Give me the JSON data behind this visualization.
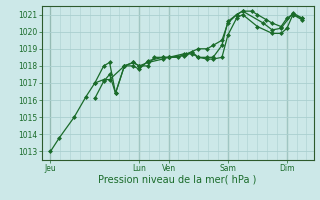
{
  "title": "",
  "xlabel": "Pression niveau de la mer( hPa )",
  "ylabel": "",
  "bg_color": "#cce8e8",
  "grid_color": "#aacfcf",
  "line_color": "#1a6b2a",
  "spine_color": "#2d5a2d",
  "ylim": [
    1012.5,
    1021.5
  ],
  "yticks": [
    1013,
    1014,
    1015,
    1016,
    1017,
    1018,
    1019,
    1020,
    1021
  ],
  "day_labels": [
    "Jeu",
    "Lun",
    "Ven",
    "Sam",
    "Dim"
  ],
  "day_positions": [
    0,
    3,
    4,
    6,
    8
  ],
  "series": [
    [
      0.0,
      1013.0,
      0.3,
      1013.8,
      0.8,
      1015.0,
      1.2,
      1016.2,
      1.5,
      1017.0,
      1.8,
      1017.2,
      2.0,
      1017.2,
      2.5,
      1018.0,
      2.8,
      1018.2,
      3.0,
      1018.0,
      3.3,
      1018.0,
      3.5,
      1018.5,
      3.8,
      1018.5,
      4.0,
      1018.5,
      4.3,
      1018.5,
      4.6,
      1018.7,
      5.0,
      1019.0,
      5.3,
      1019.0,
      5.5,
      1019.2,
      5.8,
      1019.5,
      6.0,
      1020.5,
      6.3,
      1021.0,
      6.5,
      1021.2,
      6.8,
      1021.2,
      7.0,
      1021.0,
      7.3,
      1020.7,
      7.5,
      1020.5,
      7.8,
      1020.3,
      8.0,
      1020.8,
      8.2,
      1021.0,
      8.5,
      1020.8
    ],
    [
      1.5,
      1016.1,
      1.8,
      1017.1,
      2.0,
      1017.5,
      2.2,
      1016.4,
      2.5,
      1018.0,
      2.8,
      1018.0,
      3.0,
      1017.8,
      3.3,
      1018.3,
      3.8,
      1018.5,
      4.0,
      1018.5,
      4.5,
      1018.6,
      4.8,
      1018.8,
      5.0,
      1018.5,
      5.3,
      1018.5,
      5.5,
      1018.5,
      5.8,
      1019.2,
      6.0,
      1020.6,
      6.3,
      1021.0,
      6.5,
      1021.2,
      7.2,
      1020.5,
      7.5,
      1020.1,
      7.8,
      1020.2,
      8.2,
      1021.1,
      8.5,
      1020.8
    ],
    [
      1.5,
      1017.0,
      1.8,
      1018.0,
      2.0,
      1018.2,
      2.2,
      1016.4,
      2.5,
      1018.0,
      2.8,
      1018.2,
      3.0,
      1018.0,
      3.3,
      1018.2,
      3.8,
      1018.4,
      4.0,
      1018.5,
      4.5,
      1018.7,
      4.8,
      1018.7,
      5.0,
      1018.5,
      5.3,
      1018.4,
      5.5,
      1018.4,
      5.8,
      1018.5,
      6.0,
      1019.8,
      6.3,
      1020.8,
      6.5,
      1021.0,
      7.0,
      1020.3,
      7.5,
      1019.9,
      7.8,
      1019.9,
      8.0,
      1020.2,
      8.2,
      1021.0,
      8.5,
      1020.7
    ]
  ],
  "xlim": [
    -0.3,
    8.9
  ],
  "tick_fontsize": 5.5,
  "xlabel_fontsize": 7,
  "marker_size": 2.5,
  "line_width": 0.9
}
